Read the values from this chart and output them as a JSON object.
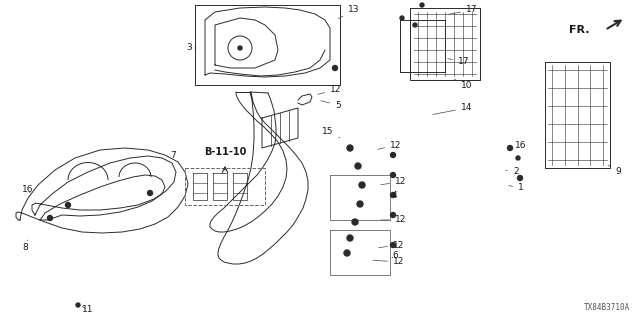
{
  "background_color": "#ffffff",
  "diagram_code": "TX84B3710A",
  "fr_label": "FR.",
  "b_label": "B-11-10",
  "line_color": "#2a2a2a",
  "label_color": "#1a1a1a"
}
